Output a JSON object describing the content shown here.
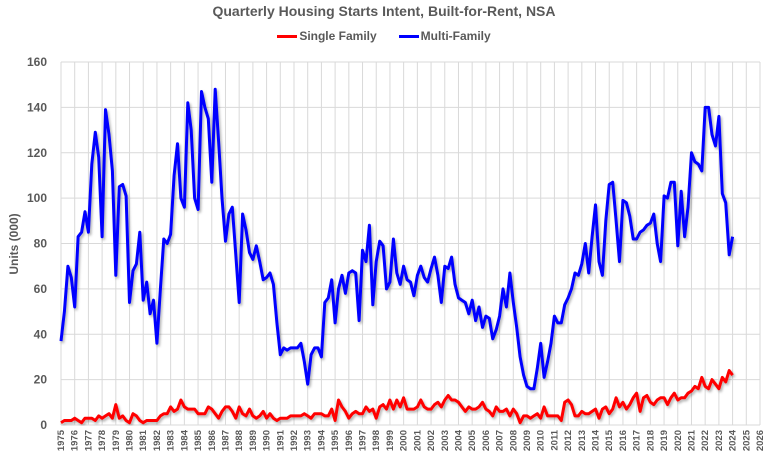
{
  "chart_data": {
    "type": "line",
    "title": "Quarterly Housing Starts Intent, Built-for-Rent, NSA",
    "ylabel": "Units (000)",
    "xlabel": "",
    "ylim": [
      0,
      160
    ],
    "yticks": [
      0,
      20,
      40,
      60,
      80,
      100,
      120,
      140,
      160
    ],
    "xlim": [
      1975,
      2026
    ],
    "xtick_labels": [
      "1975",
      "1976",
      "1977",
      "1978",
      "1979",
      "1980",
      "1981",
      "1982",
      "1983",
      "1984",
      "1985",
      "1986",
      "1987",
      "1988",
      "1989",
      "1990",
      "1991",
      "1992",
      "1993",
      "1994",
      "1995",
      "1996",
      "1997",
      "1998",
      "1999",
      "2000",
      "2001",
      "2002",
      "2003",
      "2004",
      "2005",
      "2006",
      "2007",
      "2008",
      "2009",
      "2010",
      "2011",
      "2012",
      "2013",
      "2014",
      "2015",
      "2016",
      "2017",
      "2018",
      "2019",
      "2020",
      "2021",
      "2022",
      "2023",
      "2024",
      "2025",
      "2026"
    ],
    "grid": true,
    "legend_placement": "top",
    "x_period": "quarterly, 1975 Q1 to 2024 Q1",
    "series": [
      {
        "name": "Single Family",
        "color": "#FF0000",
        "values": [
          1,
          2,
          2,
          2,
          3,
          2,
          1,
          3,
          3,
          3,
          2,
          4,
          3,
          4,
          5,
          3,
          9,
          3,
          4,
          2,
          1,
          5,
          4,
          2,
          1,
          2,
          2,
          2,
          2,
          4,
          5,
          5,
          8,
          6,
          7,
          11,
          8,
          7,
          7,
          7,
          5,
          5,
          5,
          8,
          7,
          5,
          3,
          6,
          8,
          8,
          6,
          3,
          8,
          5,
          4,
          7,
          4,
          3,
          4,
          6,
          3,
          5,
          3,
          2,
          3,
          3,
          3,
          4,
          4,
          4,
          4,
          5,
          4,
          3,
          5,
          5,
          5,
          4,
          4,
          7,
          2,
          11,
          8,
          6,
          3,
          5,
          6,
          5,
          5,
          8,
          6,
          7,
          3,
          8,
          9,
          7,
          11,
          7,
          11,
          8,
          12,
          7,
          7,
          7,
          8,
          11,
          8,
          7,
          7,
          9,
          10,
          8,
          11,
          13,
          11,
          11,
          10,
          8,
          6,
          8,
          7,
          7,
          8,
          10,
          7,
          6,
          4,
          8,
          6,
          6,
          7,
          4,
          7,
          5,
          1,
          4,
          4,
          3,
          4,
          5,
          3,
          8,
          4,
          4,
          4,
          4,
          2,
          10,
          11,
          9,
          4,
          4,
          6,
          5,
          5,
          6,
          7,
          3,
          7,
          8,
          5,
          7,
          12,
          8,
          10,
          7,
          9,
          12,
          14,
          6,
          12,
          13,
          10,
          9,
          11,
          12,
          12,
          9,
          12,
          14,
          11,
          12,
          12,
          14,
          15,
          17,
          16,
          21,
          17,
          16,
          20,
          18,
          16,
          21,
          19,
          24,
          22
        ]
      },
      {
        "name": "Multi-Family",
        "color": "#0000FF",
        "values": [
          37,
          50,
          70,
          65,
          52,
          83,
          85,
          94,
          85,
          115,
          129,
          118,
          83,
          139,
          128,
          112,
          66,
          105,
          106,
          101,
          54,
          68,
          71,
          85,
          55,
          63,
          49,
          55,
          36,
          60,
          82,
          80,
          84,
          110,
          124,
          100,
          96,
          142,
          130,
          100,
          95,
          147,
          140,
          135,
          107,
          148,
          125,
          100,
          81,
          93,
          96,
          75,
          54,
          93,
          86,
          76,
          73,
          79,
          72,
          64,
          65,
          67,
          62,
          45,
          31,
          34,
          33,
          34,
          34,
          34,
          36,
          28,
          18,
          31,
          34,
          34,
          30,
          54,
          56,
          64,
          45,
          60,
          66,
          58,
          67,
          68,
          67,
          46,
          77,
          72,
          88,
          53,
          72,
          81,
          79,
          60,
          63,
          82,
          67,
          62,
          70,
          64,
          63,
          57,
          66,
          70,
          65,
          63,
          69,
          74,
          66,
          54,
          70,
          69,
          74,
          62,
          56,
          55,
          54,
          49,
          55,
          46,
          52,
          43,
          48,
          47,
          38,
          42,
          48,
          60,
          52,
          67,
          54,
          43,
          30,
          22,
          17,
          16,
          16,
          25,
          36,
          21,
          28,
          36,
          48,
          45,
          45,
          53,
          56,
          60,
          67,
          66,
          71,
          80,
          67,
          83,
          97,
          72,
          66,
          90,
          106,
          107,
          90,
          72,
          99,
          98,
          92,
          82,
          82,
          85,
          86,
          88,
          89,
          93,
          80,
          72,
          101,
          100,
          107,
          107,
          79,
          103,
          83,
          96,
          120,
          116,
          115,
          112,
          140,
          140,
          128,
          123,
          136,
          102,
          98,
          75,
          83
        ]
      }
    ]
  }
}
